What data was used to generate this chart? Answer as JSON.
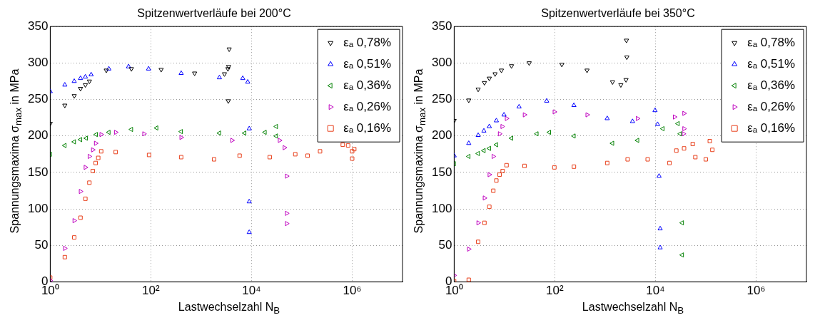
{
  "chart_data": [
    {
      "type": "scatter",
      "title": "Spitzenwertverläufe bei 200°C",
      "xlabel": "Lastwechselzahl N$_{B}$",
      "ylabel": "Spannungsmaxima σ$_{max}$ in MPa",
      "log": "x",
      "xlim": [
        1,
        10000000
      ],
      "xticks": [
        {
          "value": 1,
          "label": "10⁰"
        },
        {
          "value": 100,
          "label": "10²"
        },
        {
          "value": 10000,
          "label": "10⁴"
        },
        {
          "value": 1000000,
          "label": "10⁶"
        }
      ],
      "ylim": [
        0,
        350
      ],
      "yticks": [
        0,
        50,
        100,
        150,
        200,
        250,
        300,
        350
      ],
      "grid": true,
      "legend": "top right",
      "series": [
        {
          "name": "εₐ 0,78%",
          "color": "#000000",
          "marker": "triangle-down",
          "x": [
            1,
            1.95,
            3,
            4,
            5,
            6,
            13,
            41,
            160,
            740,
            2900,
            3400,
            3450,
            3500,
            3600
          ],
          "values": [
            217,
            242,
            255,
            265,
            270,
            275,
            290,
            292,
            291,
            286,
            285,
            292,
            248,
            295,
            319
          ]
        },
        {
          "name": "εₐ 0,51%",
          "color": "#0000ff",
          "marker": "triangle",
          "x": [
            1,
            1.95,
            3,
            4,
            5,
            6.5,
            14.6,
            36,
            90,
            400,
            2300,
            6700,
            8400,
            9000,
            9000,
            9000
          ],
          "values": [
            261,
            270,
            275,
            279,
            281,
            284,
            292,
            295,
            292,
            286,
            280,
            279,
            274,
            210,
            110,
            68
          ]
        },
        {
          "name": "εₐ 0,36%",
          "color": "#008000",
          "marker": "triangle-left",
          "x": [
            1,
            1.95,
            3,
            4,
            5.2,
            8.2,
            14.6,
            41,
            130,
            400,
            2300,
            7300,
            18500,
            31000,
            31000
          ],
          "values": [
            175,
            187,
            192,
            195,
            197,
            202,
            205,
            209,
            211,
            206,
            204,
            204,
            205,
            213,
            200
          ]
        },
        {
          "name": "εₐ 0,26%",
          "color": "#bf00bf",
          "marker": "triangle-right",
          "x": [
            1,
            1.95,
            3,
            4,
            5,
            6,
            7,
            8,
            10.3,
            20,
            73,
            400,
            4100,
            36000,
            45000,
            50000,
            50000,
            50000
          ],
          "values": [
            2,
            46,
            84,
            124,
            157,
            172,
            181,
            190,
            202,
            205,
            203,
            198,
            194,
            194,
            184,
            145,
            94,
            80
          ]
        },
        {
          "name": "εₐ 0,16%",
          "color": "#e8401c",
          "marker": "square",
          "x": [
            1,
            1.95,
            3,
            4,
            5,
            6,
            7,
            8,
            9,
            10.3,
            20,
            92,
            400,
            1800,
            5800,
            23000,
            74000,
            130000,
            230000,
            650000,
            830000,
            1000000,
            1000000,
            1100000
          ],
          "values": [
            6,
            34,
            61,
            88,
            114,
            136,
            152,
            163,
            170,
            179,
            178,
            174,
            171,
            168,
            173,
            171,
            175,
            173,
            179,
            188,
            187,
            179,
            169,
            182
          ]
        }
      ]
    },
    {
      "type": "scatter",
      "title": "Spitzenwertverläufe bei 350°C",
      "xlabel": "Lastwechselzahl N$_{B}$",
      "ylabel": "Spannungsmaxima σ$_{max}$ in MPa",
      "log": "x",
      "xlim": [
        1,
        10000000
      ],
      "xticks": [
        {
          "value": 1,
          "label": "10⁰"
        },
        {
          "value": 100,
          "label": "10²"
        },
        {
          "value": 10000,
          "label": "10⁴"
        },
        {
          "value": 1000000,
          "label": "10⁶"
        }
      ],
      "ylim": [
        0,
        350
      ],
      "yticks": [
        0,
        50,
        100,
        150,
        200,
        250,
        300,
        350
      ],
      "grid": true,
      "legend": "top right",
      "series": [
        {
          "name": "εₐ 0,78%",
          "color": "#000000",
          "marker": "triangle-down",
          "x": [
            1,
            1.95,
            3,
            4,
            5,
            6.5,
            8.7,
            13.8,
            31,
            138,
            437,
            1400,
            2050,
            2600,
            2700,
            2650
          ],
          "values": [
            221,
            249,
            264,
            273,
            279,
            285,
            290,
            296,
            300,
            298,
            290,
            274,
            270,
            277,
            308,
            331
          ]
        },
        {
          "name": "εₐ 0,51%",
          "color": "#0000ff",
          "marker": "triangle",
          "x": [
            1,
            1.95,
            3,
            3.9,
            5,
            6.9,
            9.8,
            19.5,
            69,
            240,
            1100,
            3500,
            9800,
            11000,
            11800,
            12400,
            12400
          ],
          "values": [
            173,
            190,
            201,
            207,
            213,
            221,
            229,
            240,
            248,
            242,
            224,
            220,
            235,
            216,
            145,
            73,
            47
          ]
        },
        {
          "name": "εₐ 0,36%",
          "color": "#008000",
          "marker": "triangle-left",
          "x": [
            1,
            1.95,
            3,
            3.9,
            5,
            6.9,
            13.8,
            44,
            78,
            240,
            1400,
            4400,
            14000,
            28000,
            31000,
            34000,
            34000
          ],
          "values": [
            162,
            172,
            176,
            180,
            183,
            188,
            197,
            203,
            205,
            200,
            190,
            194,
            210,
            217,
            203,
            81,
            37
          ]
        },
        {
          "name": "εₐ 0,26%",
          "color": "#bf00bf",
          "marker": "triangle-right",
          "x": [
            1,
            1.95,
            3,
            4,
            5,
            6,
            8,
            9,
            11,
            25,
            98,
            440,
            4400,
            24000,
            37000,
            37000,
            36000
          ],
          "values": [
            9,
            45,
            81,
            115,
            147,
            172,
            203,
            213,
            224,
            229,
            233,
            229,
            224,
            226,
            231,
            210,
            203
          ]
        },
        {
          "name": "εₐ 0,16%",
          "color": "#e8401c",
          "marker": "square",
          "x": [
            1,
            1.95,
            3,
            4,
            5,
            6,
            6.9,
            8,
            9.2,
            11,
            25,
            98,
            240,
            1100,
            2800,
            7000,
            19000,
            26000,
            37000,
            55000,
            62000,
            100000,
            120000,
            135000
          ],
          "values": [
            1,
            3,
            55,
            81,
            103,
            125,
            139,
            147,
            152,
            160,
            159,
            157,
            158,
            163,
            168,
            168,
            163,
            180,
            183,
            189,
            171,
            168,
            193,
            181
          ]
        }
      ]
    }
  ]
}
